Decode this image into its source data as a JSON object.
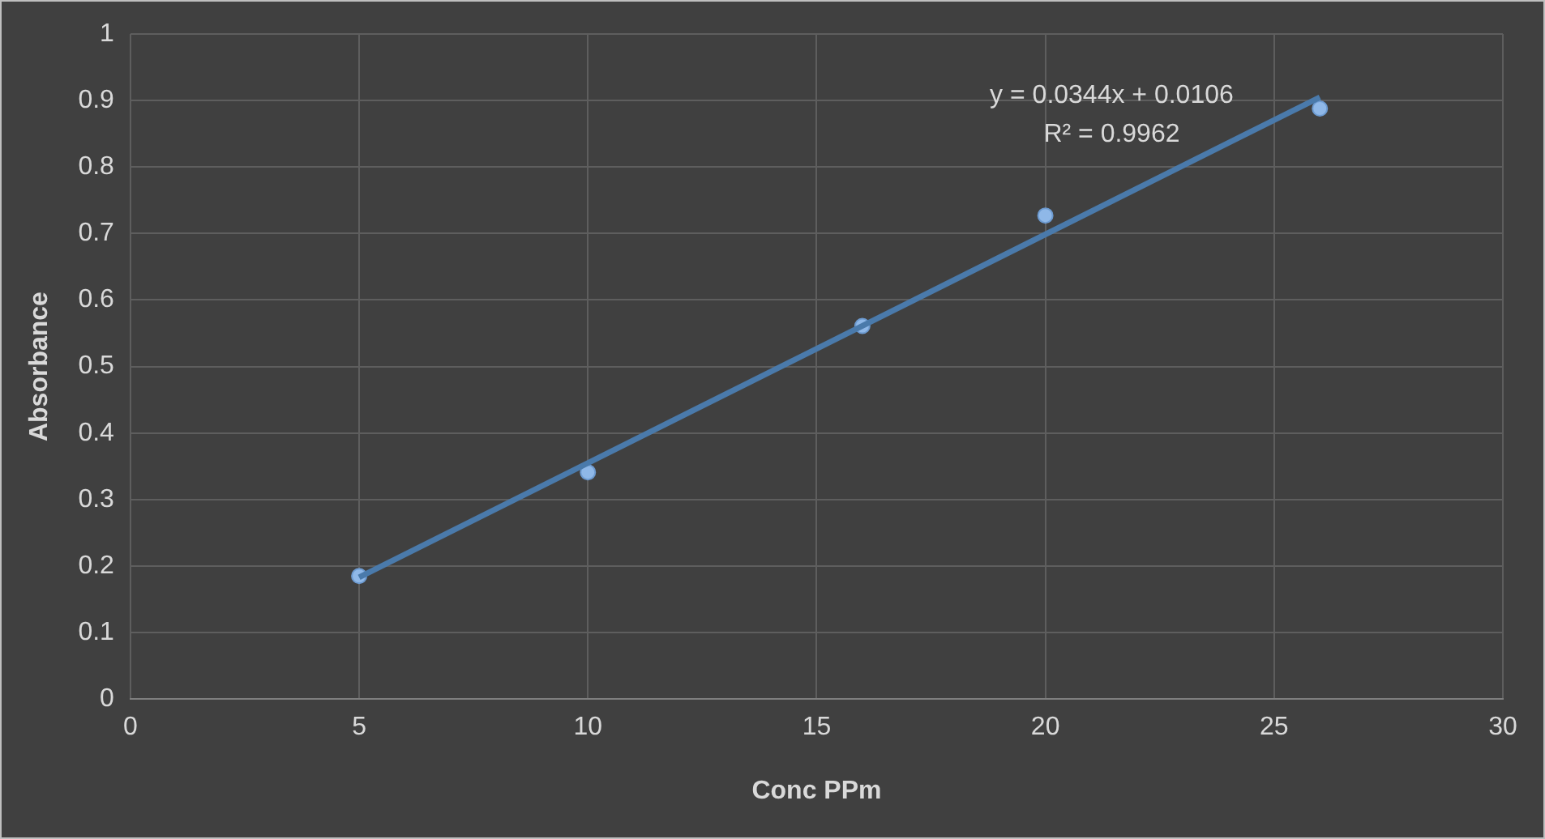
{
  "chart_data": {
    "type": "scatter",
    "xlabel": "Conc PPm",
    "ylabel": "Absorbance",
    "xlim": [
      0,
      30
    ],
    "xticks": [
      0,
      5,
      10,
      15,
      20,
      25,
      30
    ],
    "ylim": [
      0,
      1
    ],
    "yticks": [
      0,
      0.1,
      0.2,
      0.3,
      0.4,
      0.5,
      0.6,
      0.7,
      0.8,
      0.9,
      1
    ],
    "grid": true,
    "legend": false,
    "marker": "circle",
    "series": [
      {
        "type": "line",
        "color": "#4a7aab",
        "x": [
          5,
          26
        ],
        "values": [
          0.183,
          0.905
        ],
        "marker": "none"
      },
      {
        "color": "#8fb8e8",
        "x": [
          5,
          10,
          16,
          20,
          26
        ],
        "values": [
          0.185,
          0.341,
          0.561,
          0.727,
          0.888
        ]
      }
    ],
    "annotations": [
      "y = 0.0344x + 0.0106",
      "R² = 0.9962"
    ]
  }
}
